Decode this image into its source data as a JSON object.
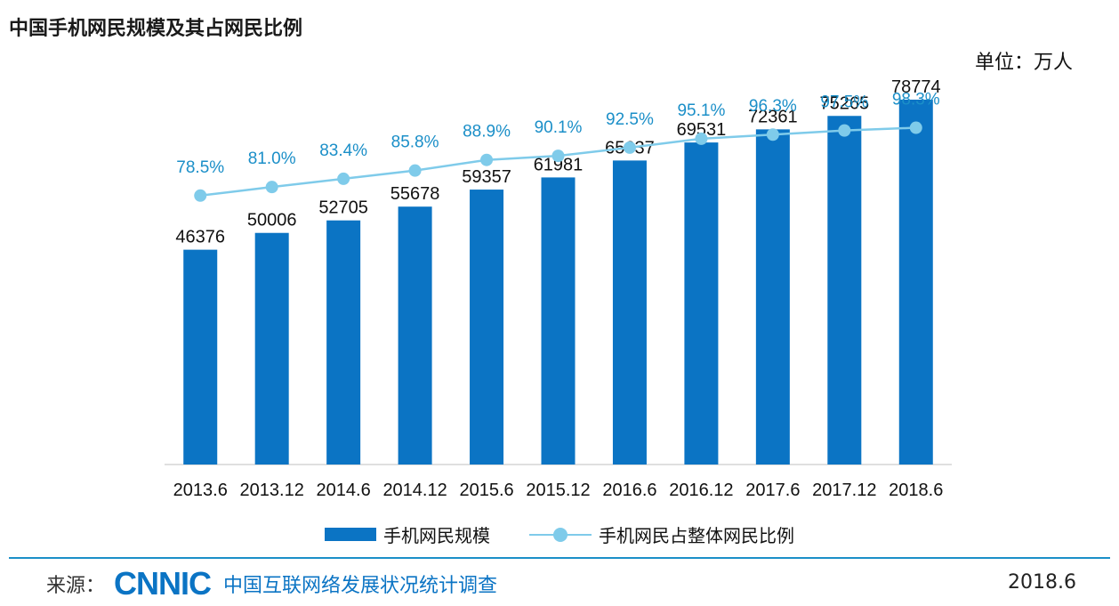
{
  "title": "中国手机网民规模及其占网民比例",
  "unit_label": "单位：万人",
  "colors": {
    "bar": "#0b74c4",
    "line": "#7fcbea",
    "line_label": "#1b8fc8",
    "logo": "#0b74c4",
    "divider": "#1b8fc8"
  },
  "legend": {
    "bar_label": "手机网民规模",
    "line_label": "手机网民占整体网民比例"
  },
  "footer": {
    "source_label": "来源：",
    "logo_text": "CNNIC",
    "survey_name": "中国互联网络发展状况统计调查",
    "date": "2018.6"
  },
  "chart_data": {
    "type": "bar",
    "categories": [
      "2013.6",
      "2013.12",
      "2014.6",
      "2014.12",
      "2015.6",
      "2015.12",
      "2016.6",
      "2016.12",
      "2017.6",
      "2017.12",
      "2018.6"
    ],
    "series": [
      {
        "name": "手机网民规模",
        "type": "bar",
        "values": [
          46376,
          50006,
          52705,
          55678,
          59357,
          61981,
          65637,
          69531,
          72361,
          75265,
          78774
        ],
        "labels": [
          "46376",
          "50006",
          "52705",
          "55678",
          "59357",
          "61981",
          "65637",
          "69531",
          "72361",
          "75265",
          "78774"
        ]
      },
      {
        "name": "手机网民占整体网民比例",
        "type": "line",
        "values": [
          78.5,
          81.0,
          83.4,
          85.8,
          88.9,
          90.1,
          92.5,
          95.1,
          96.3,
          97.5,
          98.3
        ],
        "labels": [
          "78.5%",
          "81.0%",
          "83.4%",
          "85.8%",
          "88.9%",
          "90.1%",
          "92.5%",
          "95.1%",
          "96.3%",
          "97.5%",
          "98.3%"
        ]
      }
    ],
    "ylim": [
      0,
      83000
    ],
    "y2lim": [
      0,
      100
    ],
    "grid": false,
    "legend_position": "bottom"
  }
}
